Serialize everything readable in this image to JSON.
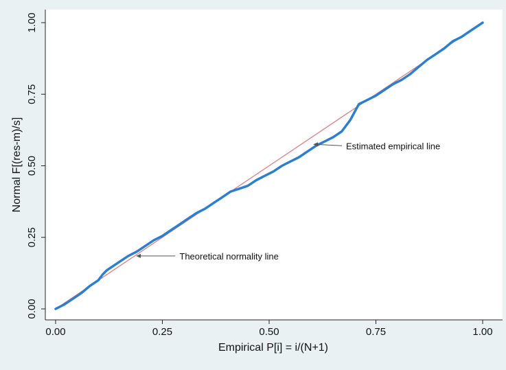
{
  "chart_data": {
    "type": "line",
    "title": "",
    "xlabel": "Empirical P[i] = i/(N+1)",
    "ylabel": "Normal F[(res-m)/s]",
    "xlim": [
      0,
      1
    ],
    "ylim": [
      0,
      1
    ],
    "x_ticks": [
      "0.00",
      "0.25",
      "0.50",
      "0.75",
      "1.00"
    ],
    "y_ticks": [
      "0.00",
      "0.25",
      "0.50",
      "0.75",
      "1.00"
    ],
    "grid": false,
    "legend": "none",
    "series": [
      {
        "color": "#2a7fd0",
        "x": [
          0.0,
          0.02,
          0.04,
          0.06,
          0.08,
          0.1,
          0.11,
          0.12,
          0.13,
          0.15,
          0.17,
          0.19,
          0.21,
          0.23,
          0.25,
          0.27,
          0.29,
          0.31,
          0.33,
          0.35,
          0.37,
          0.39,
          0.41,
          0.43,
          0.45,
          0.47,
          0.49,
          0.51,
          0.53,
          0.55,
          0.57,
          0.59,
          0.61,
          0.63,
          0.65,
          0.67,
          0.69,
          0.71,
          0.73,
          0.75,
          0.77,
          0.79,
          0.81,
          0.83,
          0.85,
          0.87,
          0.89,
          0.91,
          0.93,
          0.95,
          0.97,
          0.99,
          1.0
        ],
        "y": [
          0.0,
          0.015,
          0.035,
          0.055,
          0.08,
          0.1,
          0.12,
          0.135,
          0.145,
          0.165,
          0.185,
          0.2,
          0.22,
          0.24,
          0.255,
          0.275,
          0.295,
          0.315,
          0.335,
          0.35,
          0.37,
          0.39,
          0.41,
          0.42,
          0.43,
          0.45,
          0.465,
          0.48,
          0.5,
          0.515,
          0.53,
          0.55,
          0.57,
          0.585,
          0.6,
          0.62,
          0.66,
          0.715,
          0.73,
          0.745,
          0.765,
          0.785,
          0.8,
          0.82,
          0.845,
          0.87,
          0.89,
          0.91,
          0.935,
          0.95,
          0.97,
          0.99,
          1.0
        ]
      },
      {
        "color": "#e07c84",
        "x": [
          0,
          1
        ],
        "y": [
          0,
          1
        ]
      }
    ],
    "annotations": [
      {
        "text": "Estimated empirical line",
        "point": [
          0.6,
          0.575
        ],
        "text_pos": [
          0.68,
          0.57
        ]
      },
      {
        "text": "Theoretical normality line",
        "point": [
          0.185,
          0.185
        ],
        "text_pos": [
          0.29,
          0.185
        ]
      }
    ]
  }
}
